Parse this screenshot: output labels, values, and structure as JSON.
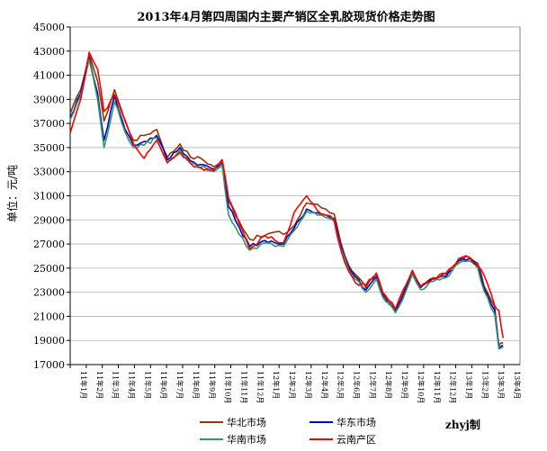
{
  "chart_data": {
    "type": "line",
    "title": "2013年4月第四周国内主要产销区全乳胶现货价格走势图",
    "ylabel": "单位：元/吨",
    "ylim": [
      17000,
      45000
    ],
    "yticks": [
      17000,
      19000,
      21000,
      23000,
      25000,
      27000,
      29000,
      31000,
      33000,
      35000,
      37000,
      39000,
      41000,
      43000,
      45000
    ],
    "categories": [
      "11年1月",
      "11年2月",
      "11年3月",
      "11年4月",
      "11年5月",
      "11年6月",
      "11年7月",
      "11年8月",
      "11年9月",
      "11年10月",
      "11年11月",
      "11年12月",
      "12年1月",
      "12年2月",
      "12年3月",
      "12年4月",
      "12年5月",
      "12年6月",
      "12年7月",
      "12年8月",
      "12年9月",
      "12年10月",
      "12年11月",
      "12年12月",
      "13年1月",
      "13年2月",
      "13年3月",
      "13年4月"
    ],
    "grid": true,
    "legend_position": "bottom",
    "annotation": "zhyj制",
    "series": [
      {
        "name": "华北市场",
        "color": "#993300",
        "values": [
          [
            0,
            37800
          ],
          [
            0.5,
            39800
          ],
          [
            0.9,
            42800
          ],
          [
            1.3,
            40500
          ],
          [
            1.6,
            37200
          ],
          [
            2.1,
            39800
          ],
          [
            2.6,
            37200
          ],
          [
            3.0,
            35600
          ],
          [
            3.5,
            36000
          ],
          [
            4.1,
            36500
          ],
          [
            4.6,
            34200
          ],
          [
            5.2,
            35300
          ],
          [
            5.7,
            34200
          ],
          [
            6.2,
            34100
          ],
          [
            6.8,
            33400
          ],
          [
            7.2,
            33900
          ],
          [
            7.5,
            30600
          ],
          [
            8.0,
            28900
          ],
          [
            8.5,
            27400
          ],
          [
            9.2,
            27700
          ],
          [
            9.7,
            28000
          ],
          [
            10.1,
            27800
          ],
          [
            10.6,
            28500
          ],
          [
            11.2,
            30400
          ],
          [
            11.7,
            30300
          ],
          [
            12.1,
            29900
          ],
          [
            12.5,
            29500
          ],
          [
            12.8,
            27200
          ],
          [
            13.2,
            25200
          ],
          [
            13.5,
            24500
          ],
          [
            14.0,
            23400
          ],
          [
            14.5,
            24500
          ],
          [
            14.8,
            23000
          ],
          [
            15.4,
            21500
          ],
          [
            15.9,
            23500
          ],
          [
            16.2,
            24800
          ],
          [
            16.6,
            23500
          ],
          [
            17.2,
            24200
          ],
          [
            17.8,
            24500
          ],
          [
            18.4,
            25700
          ],
          [
            18.9,
            25900
          ],
          [
            19.3,
            25400
          ],
          [
            19.6,
            23500
          ],
          [
            20.1,
            21800
          ],
          [
            20.3,
            18600
          ],
          [
            20.5,
            18800
          ]
        ]
      },
      {
        "name": "华东市场",
        "color": "#0000cc",
        "values": [
          [
            0,
            37500
          ],
          [
            0.5,
            39500
          ],
          [
            0.9,
            42500
          ],
          [
            1.3,
            39500
          ],
          [
            1.6,
            35600
          ],
          [
            2.1,
            39300
          ],
          [
            2.6,
            36500
          ],
          [
            3.0,
            35200
          ],
          [
            3.5,
            35500
          ],
          [
            4.1,
            36000
          ],
          [
            4.6,
            34000
          ],
          [
            5.2,
            35000
          ],
          [
            5.7,
            33900
          ],
          [
            6.2,
            33600
          ],
          [
            6.8,
            33200
          ],
          [
            7.2,
            33700
          ],
          [
            7.5,
            30100
          ],
          [
            8.0,
            28400
          ],
          [
            8.5,
            26800
          ],
          [
            9.2,
            27300
          ],
          [
            9.7,
            27100
          ],
          [
            10.1,
            27000
          ],
          [
            10.6,
            28300
          ],
          [
            11.2,
            29900
          ],
          [
            11.7,
            29600
          ],
          [
            12.1,
            29400
          ],
          [
            12.5,
            29100
          ],
          [
            12.8,
            26900
          ],
          [
            13.2,
            25000
          ],
          [
            13.5,
            24300
          ],
          [
            14.0,
            23200
          ],
          [
            14.5,
            24300
          ],
          [
            14.8,
            22800
          ],
          [
            15.4,
            21400
          ],
          [
            15.9,
            23300
          ],
          [
            16.2,
            24700
          ],
          [
            16.6,
            23400
          ],
          [
            17.2,
            24100
          ],
          [
            17.8,
            24300
          ],
          [
            18.4,
            25600
          ],
          [
            18.9,
            25800
          ],
          [
            19.3,
            25200
          ],
          [
            19.6,
            23300
          ],
          [
            20.1,
            21500
          ],
          [
            20.3,
            18400
          ],
          [
            20.5,
            18600
          ]
        ]
      },
      {
        "name": "华南市场",
        "color": "#339966",
        "values": [
          [
            0,
            37300
          ],
          [
            0.5,
            39300
          ],
          [
            0.9,
            42300
          ],
          [
            1.3,
            39000
          ],
          [
            1.6,
            35000
          ],
          [
            2.1,
            38800
          ],
          [
            2.6,
            36300
          ],
          [
            3.0,
            35000
          ],
          [
            3.5,
            35200
          ],
          [
            4.1,
            35800
          ],
          [
            4.6,
            33700
          ],
          [
            5.2,
            34800
          ],
          [
            5.7,
            33700
          ],
          [
            6.2,
            33400
          ],
          [
            6.8,
            33000
          ],
          [
            7.2,
            33500
          ],
          [
            7.5,
            29400
          ],
          [
            8.0,
            27800
          ],
          [
            8.5,
            26500
          ],
          [
            9.2,
            27100
          ],
          [
            9.7,
            26800
          ],
          [
            10.1,
            26800
          ],
          [
            10.6,
            28100
          ],
          [
            11.2,
            29700
          ],
          [
            11.7,
            29400
          ],
          [
            12.1,
            29200
          ],
          [
            12.5,
            28900
          ],
          [
            12.8,
            26700
          ],
          [
            13.2,
            24800
          ],
          [
            13.5,
            24100
          ],
          [
            14.0,
            23000
          ],
          [
            14.5,
            24100
          ],
          [
            14.8,
            22600
          ],
          [
            15.4,
            21300
          ],
          [
            15.9,
            23100
          ],
          [
            16.2,
            24500
          ],
          [
            16.6,
            23200
          ],
          [
            17.2,
            23900
          ],
          [
            17.8,
            24200
          ],
          [
            18.4,
            25400
          ],
          [
            18.9,
            25600
          ],
          [
            19.3,
            25000
          ],
          [
            19.6,
            23100
          ],
          [
            20.1,
            21200
          ],
          [
            20.3,
            18300
          ],
          [
            20.5,
            18500
          ]
        ]
      },
      {
        "name": "云南产区",
        "color": "#ff0000",
        "values": [
          [
            0,
            36200
          ],
          [
            0.5,
            39000
          ],
          [
            0.9,
            42900
          ],
          [
            1.3,
            41500
          ],
          [
            1.6,
            38000
          ],
          [
            2.1,
            39400
          ],
          [
            2.6,
            37300
          ],
          [
            3.0,
            35300
          ],
          [
            3.5,
            34100
          ],
          [
            4.1,
            35600
          ],
          [
            4.6,
            33800
          ],
          [
            5.2,
            34600
          ],
          [
            5.7,
            33700
          ],
          [
            6.2,
            33300
          ],
          [
            6.8,
            33100
          ],
          [
            7.2,
            34000
          ],
          [
            7.5,
            30800
          ],
          [
            8.0,
            28700
          ],
          [
            8.5,
            26600
          ],
          [
            9.2,
            27700
          ],
          [
            9.7,
            27300
          ],
          [
            10.1,
            27100
          ],
          [
            10.6,
            29600
          ],
          [
            11.2,
            31000
          ],
          [
            11.7,
            29800
          ],
          [
            12.1,
            29400
          ],
          [
            12.5,
            29000
          ],
          [
            12.8,
            26600
          ],
          [
            13.2,
            24700
          ],
          [
            13.5,
            23800
          ],
          [
            14.0,
            23600
          ],
          [
            14.5,
            24600
          ],
          [
            14.8,
            23000
          ],
          [
            15.4,
            21600
          ],
          [
            15.9,
            23600
          ],
          [
            16.2,
            24800
          ],
          [
            16.6,
            23500
          ],
          [
            17.2,
            24200
          ],
          [
            17.8,
            24600
          ],
          [
            18.4,
            25800
          ],
          [
            18.9,
            25900
          ],
          [
            19.3,
            25200
          ],
          [
            19.6,
            24400
          ],
          [
            20.1,
            21900
          ],
          [
            20.3,
            21500
          ],
          [
            20.5,
            19200
          ]
        ]
      }
    ]
  }
}
